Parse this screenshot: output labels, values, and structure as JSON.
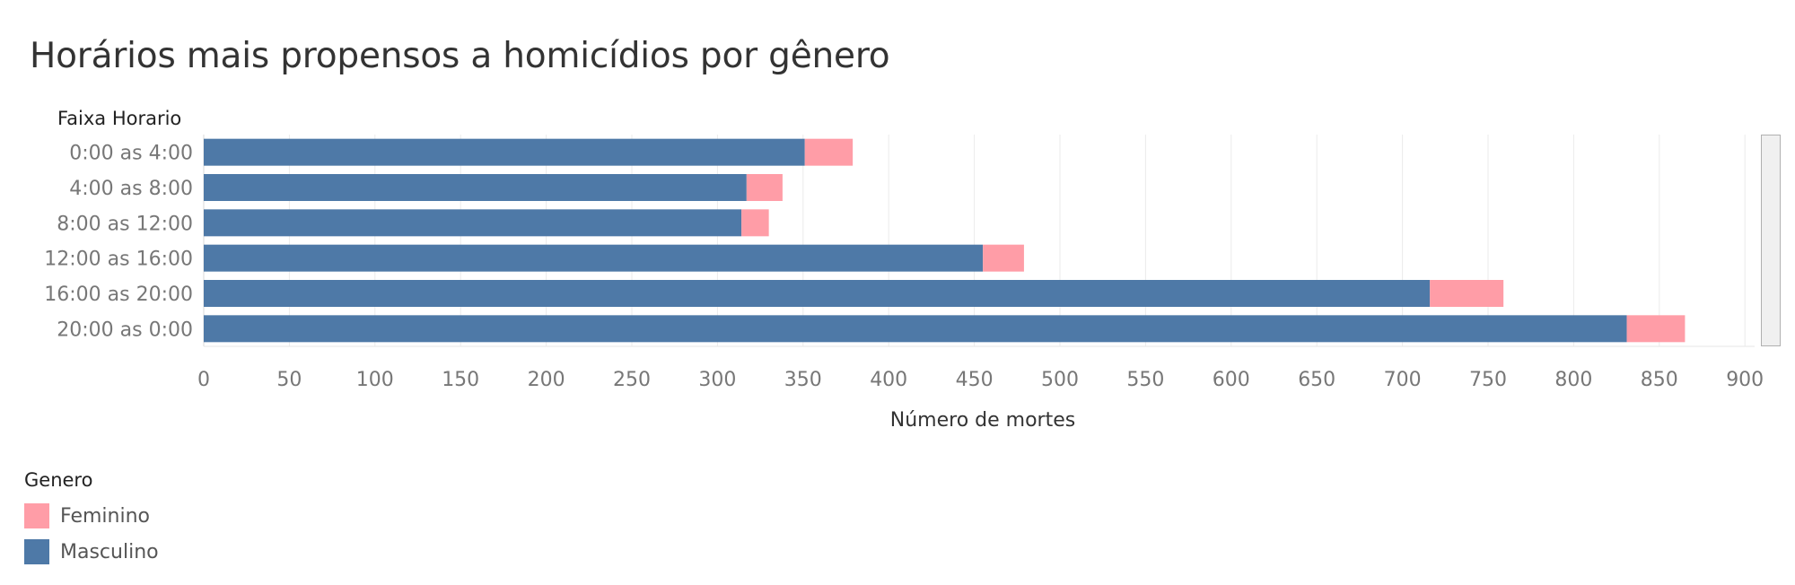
{
  "chart_data": {
    "type": "bar",
    "orientation": "horizontal",
    "stacked": true,
    "title": "Horários mais propensos a homicídios por gênero",
    "row_header": "Faixa Horario",
    "xlabel": "Número de mortes",
    "categories": [
      "0:00 as 4:00",
      "4:00 as 8:00",
      "8:00 as 12:00",
      "12:00 as 16:00",
      "16:00 as 20:00",
      "20:00 as 0:00"
    ],
    "series": [
      {
        "name": "Masculino",
        "color": "#4e79a7",
        "values": [
          351,
          317,
          314,
          455,
          716,
          831
        ]
      },
      {
        "name": "Feminino",
        "color": "#ff9da7",
        "values": [
          28,
          21,
          16,
          24,
          43,
          34
        ]
      }
    ],
    "xlim": [
      0,
      920
    ],
    "xticks": [
      0,
      50,
      100,
      150,
      200,
      250,
      300,
      350,
      400,
      450,
      500,
      550,
      600,
      650,
      700,
      750,
      800,
      850,
      900
    ],
    "grid": true,
    "legend": {
      "title": "Genero",
      "position": "bottom-left",
      "items": [
        {
          "label": "Feminino",
          "color": "#ff9da7"
        },
        {
          "label": "Masculino",
          "color": "#4e79a7"
        }
      ]
    }
  }
}
